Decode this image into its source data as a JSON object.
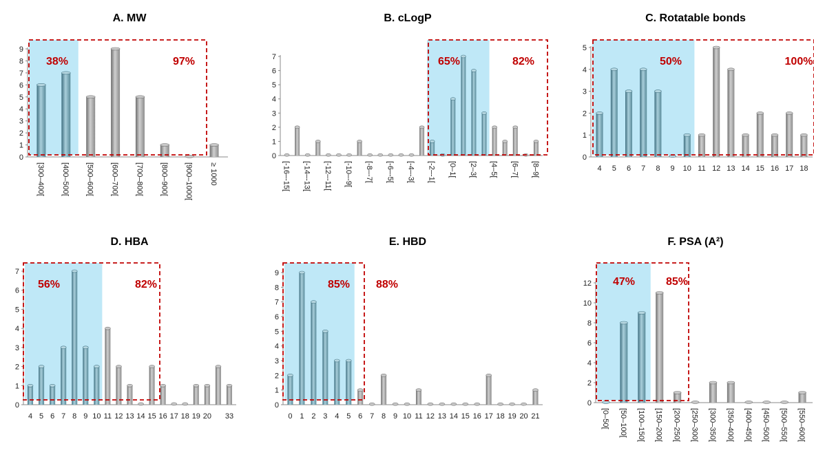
{
  "colors": {
    "highlight_fill": "#bfe8f7",
    "dashed_box": "#c00000",
    "percent_text": "#c00000",
    "bar_teal": "#5f8f9e",
    "bar_gray": "#9a9a9a"
  },
  "chart_data": [
    {
      "type": "bar",
      "title": "A. MW",
      "categories": [
        "[300–400[",
        "[400–500[",
        "[500–600[",
        "[600–700[",
        "[700–800[",
        "[800–900[",
        "[900–1000[",
        "≥ 1000"
      ],
      "values": [
        6,
        7,
        5,
        9,
        5,
        1,
        0,
        1
      ],
      "highlighted_categories": 2,
      "ylim": [
        0,
        9
      ],
      "yticks": [
        0,
        1,
        2,
        3,
        4,
        5,
        6,
        7,
        8,
        9
      ],
      "xlabels_rotated": true,
      "annotations": [
        {
          "text": "38%",
          "color": "#c00000"
        },
        {
          "text": "97%",
          "color": "#c00000"
        }
      ],
      "dashed_box": {
        "from_category": 0,
        "to_category": 6
      }
    },
    {
      "type": "bar",
      "title": "B. cLogP",
      "categories": [
        "[-16–-15[",
        "",
        "[-14–-13[",
        "",
        "[-12–-11[",
        "",
        "[-10–-9[",
        "",
        "[-8–-7[",
        "",
        "[-6–-5[",
        "",
        "[-4–-3[",
        "",
        "[-2–-1[",
        "",
        "[0–1[",
        "",
        "[2–3[",
        "",
        "[4–5[",
        "",
        "[6–7[",
        "",
        "[8–9["
      ],
      "values": [
        0,
        2,
        0,
        1,
        0,
        0,
        0,
        1,
        0,
        0,
        0,
        0,
        0,
        2,
        1,
        0,
        4,
        7,
        6,
        3,
        2,
        1,
        2,
        0,
        1
      ],
      "highlight_range": [
        14,
        19
      ],
      "ylim": [
        0,
        7
      ],
      "yticks": [
        0,
        1,
        2,
        3,
        4,
        5,
        6,
        7
      ],
      "xlabels_rotated": true,
      "annotations": [
        {
          "text": "65%",
          "color": "#c00000"
        },
        {
          "text": "82%",
          "color": "#c00000"
        }
      ],
      "dashed_box": {
        "from_category": 14,
        "to_category": 24
      }
    },
    {
      "type": "bar",
      "title": "C. Rotatable bonds",
      "categories": [
        "4",
        "5",
        "6",
        "7",
        "8",
        "9",
        "10",
        "11",
        "12",
        "13",
        "14",
        "15",
        "16",
        "17",
        "18"
      ],
      "values": [
        2,
        4,
        3,
        4,
        3,
        0,
        1,
        1,
        5,
        4,
        1,
        2,
        1,
        2,
        1
      ],
      "highlight_range": [
        0,
        6
      ],
      "ylim": [
        0,
        5
      ],
      "yticks": [
        0,
        1,
        2,
        3,
        4,
        5
      ],
      "xlabels_rotated": false,
      "annotations": [
        {
          "text": "50%",
          "color": "#c00000"
        },
        {
          "text": "100%",
          "color": "#c00000"
        }
      ],
      "dashed_box": {
        "from_category": 0,
        "to_category": 14
      }
    },
    {
      "type": "bar",
      "title": "D. HBA",
      "categories": [
        "4",
        "5",
        "6",
        "7",
        "8",
        "9",
        "10",
        "11",
        "12",
        "13",
        "14",
        "15",
        "16",
        "17",
        "18",
        "19",
        "20",
        "",
        "33"
      ],
      "values": [
        1,
        2,
        1,
        3,
        7,
        3,
        2,
        4,
        2,
        1,
        0,
        2,
        1,
        0,
        0,
        1,
        1,
        2,
        1
      ],
      "highlight_range": [
        0,
        6
      ],
      "ylim": [
        0,
        7
      ],
      "yticks": [
        0,
        1,
        2,
        3,
        4,
        5,
        6,
        7
      ],
      "xlabels_rotated": false,
      "annotations": [
        {
          "text": "56%",
          "color": "#c00000"
        },
        {
          "text": "82%",
          "color": "#c00000"
        }
      ],
      "dashed_box": {
        "from_category": 0,
        "to_category": 11
      }
    },
    {
      "type": "bar",
      "title": "E. HBD",
      "categories": [
        "0",
        "1",
        "2",
        "3",
        "4",
        "5",
        "6",
        "7",
        "8",
        "9",
        "10",
        "11",
        "12",
        "13",
        "14",
        "15",
        "16",
        "17",
        "18",
        "19",
        "20",
        "21"
      ],
      "values": [
        2,
        9,
        7,
        5,
        3,
        3,
        1,
        0,
        2,
        0,
        0,
        1,
        0,
        0,
        0,
        0,
        0,
        2,
        0,
        0,
        0,
        1
      ],
      "highlight_range": [
        0,
        5
      ],
      "ylim": [
        0,
        9
      ],
      "yticks": [
        0,
        1,
        2,
        3,
        4,
        5,
        6,
        7,
        8,
        9
      ],
      "xlabels_rotated": false,
      "annotations": [
        {
          "text": "85%",
          "color": "#c00000"
        },
        {
          "text": "88%",
          "color": "#c00000"
        }
      ],
      "dashed_box": {
        "from_category": 0,
        "to_category": 6
      }
    },
    {
      "type": "bar",
      "title": "F. PSA (A²)",
      "categories": [
        "[0–50[",
        "[50–100[",
        "[100–150[",
        "[150–200[",
        "[200–250[",
        "[250–300[",
        "[300–350[",
        "[350–400[",
        "[400–450[",
        "[450–500[",
        "[500–550[",
        "[550–600["
      ],
      "values": [
        0,
        8,
        9,
        11,
        1,
        0,
        2,
        2,
        0,
        0,
        0,
        1
      ],
      "highlight_range": [
        0,
        2
      ],
      "ylim": [
        0,
        12
      ],
      "yticks": [
        0,
        2,
        4,
        6,
        8,
        10,
        12
      ],
      "xlabels_rotated": true,
      "annotations": [
        {
          "text": "47%",
          "color": "#c00000"
        },
        {
          "text": "85%",
          "color": "#c00000"
        }
      ],
      "dashed_box": {
        "from_category": 0,
        "to_category": 3
      }
    }
  ]
}
